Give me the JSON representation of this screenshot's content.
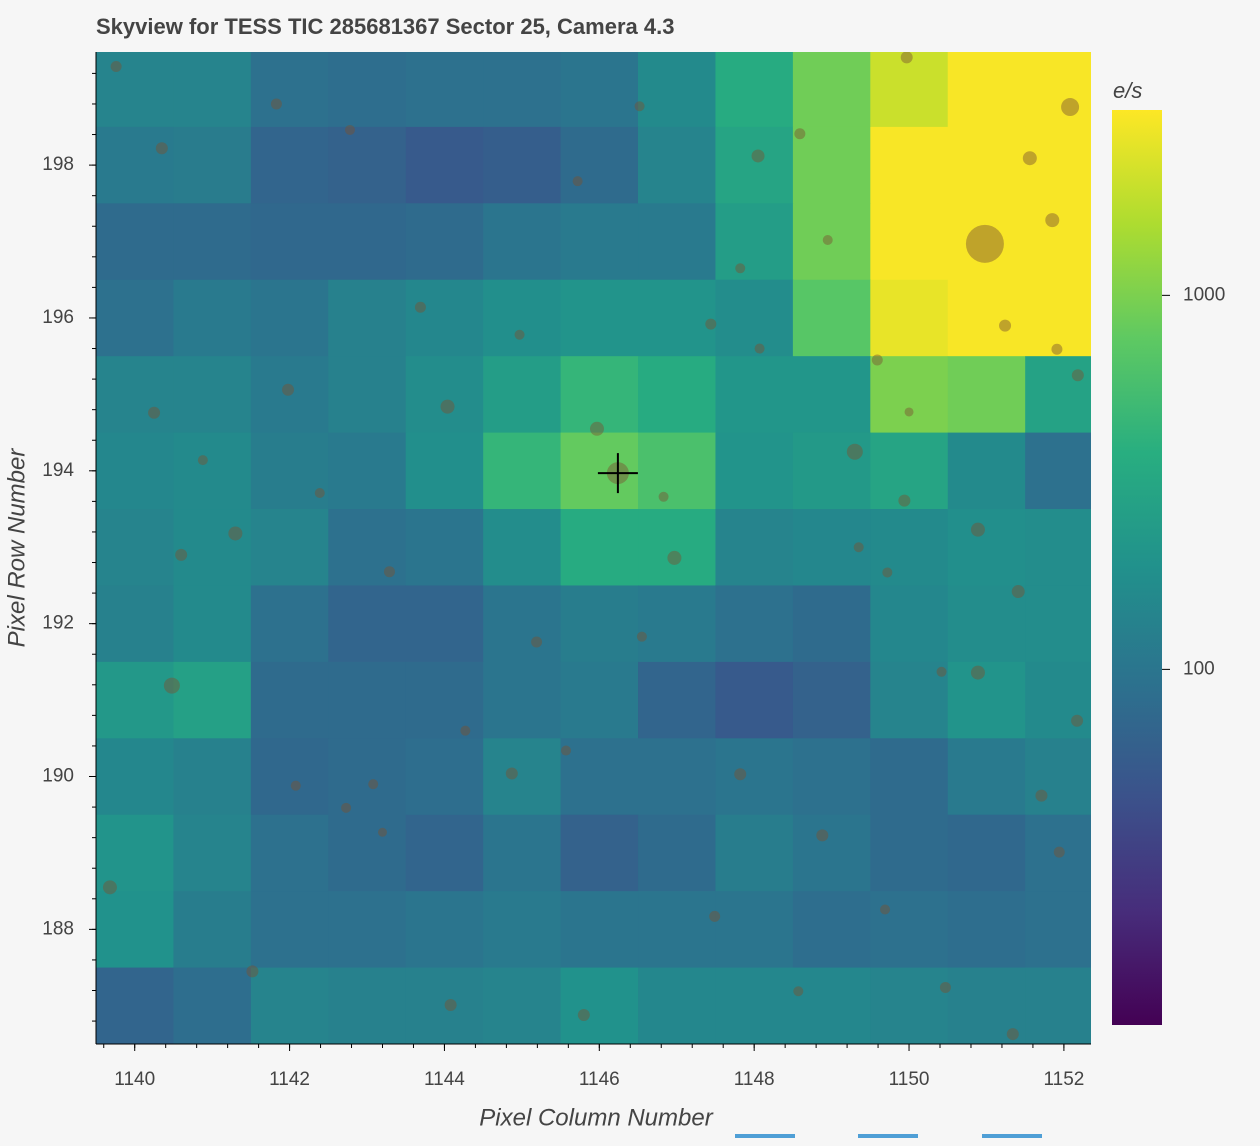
{
  "chart_data": {
    "type": "heatmap",
    "title": "Skyview for TESS TIC 285681367 Sector 25, Camera 4.3",
    "x_label": "Pixel Column Number",
    "y_label": "Pixel Row Number",
    "colorbar_label": "e/s",
    "x": [
      1140,
      1141,
      1142,
      1143,
      1144,
      1145,
      1146,
      1147,
      1148,
      1149,
      1150,
      1151,
      1152
    ],
    "y": [
      199,
      198,
      197,
      196,
      195,
      194,
      193,
      192,
      191,
      190,
      189,
      188,
      187
    ],
    "z": [
      [
        140,
        140,
        90,
        85,
        90,
        90,
        100,
        160,
        350,
        900,
        2000,
        3000,
        3000
      ],
      [
        110,
        115,
        70,
        65,
        55,
        60,
        80,
        140,
        300,
        900,
        3000,
        3000,
        3000
      ],
      [
        80,
        80,
        75,
        75,
        80,
        100,
        110,
        110,
        250,
        900,
        3000,
        3000,
        3000
      ],
      [
        90,
        110,
        100,
        130,
        150,
        180,
        200,
        200,
        170,
        700,
        2600,
        3000,
        3000
      ],
      [
        140,
        140,
        110,
        130,
        170,
        250,
        450,
        350,
        210,
        210,
        1000,
        900,
        280
      ],
      [
        150,
        160,
        120,
        110,
        180,
        450,
        800,
        600,
        200,
        230,
        300,
        160,
        90
      ],
      [
        140,
        160,
        140,
        90,
        100,
        170,
        350,
        350,
        140,
        150,
        160,
        180,
        170
      ],
      [
        130,
        160,
        90,
        70,
        70,
        100,
        120,
        110,
        90,
        80,
        150,
        170,
        170
      ],
      [
        220,
        270,
        80,
        80,
        80,
        100,
        110,
        70,
        55,
        65,
        140,
        200,
        160
      ],
      [
        150,
        130,
        75,
        80,
        85,
        140,
        90,
        90,
        100,
        90,
        80,
        110,
        130
      ],
      [
        200,
        140,
        90,
        80,
        70,
        100,
        65,
        80,
        120,
        100,
        80,
        75,
        90
      ],
      [
        190,
        120,
        90,
        90,
        100,
        110,
        100,
        100,
        100,
        85,
        90,
        85,
        90
      ],
      [
        70,
        85,
        140,
        130,
        130,
        140,
        190,
        150,
        150,
        150,
        140,
        130,
        130
      ]
    ],
    "colormap": [
      "#440154",
      "#472d7b",
      "#3b528b",
      "#2c728e",
      "#21918c",
      "#28ae80",
      "#5ec962",
      "#addc30",
      "#fde725"
    ],
    "clim": [
      11.2,
      3130
    ],
    "cticks": [
      100,
      1000
    ],
    "clog": true,
    "xlim": [
      1139.5,
      1152.35
    ],
    "ylim": [
      186.5,
      199.48
    ],
    "xticks": [
      1140,
      1142,
      1144,
      1146,
      1148,
      1150,
      1152
    ],
    "yticks": [
      188,
      190,
      192,
      194,
      196,
      198
    ],
    "star_color": "#7a5230",
    "stars": {
      "x": [
        1152.08,
        1150.98,
        1151.56,
        1151.85,
        1149.97,
        1151.24,
        1146.24,
        1145.97,
        1149.3,
        1149.94,
        1146.97,
        1146.83,
        1144.04,
        1143.69,
        1141.3,
        1140.48,
        1139.68,
        1140.6,
        1140.35,
        1139.76,
        1140.25,
        1140.88,
        1141.98,
        1150.89,
        1150.89,
        1151.41,
        1151.71,
        1152.18,
        1147.82,
        1148.88,
        1149.69,
        1147.49,
        1144.08,
        1141.52,
        1145.8,
        1147.44,
        1148.07,
        1148.05,
        1148.95,
        1145.72,
        1144.97,
        1145.19,
        1144.87,
        1144.27,
        1142.73,
        1143.08,
        1142.08,
        1143.2,
        1143.29,
        1142.39,
        1150.47,
        1151.34,
        1150.42,
        1151.94,
        1152.17,
        1149.72,
        1147.82,
        1151.91,
        1149.59,
        1150.0,
        1149.35,
        1145.57,
        1146.55,
        1148.57,
        1148.59,
        1146.52,
        1141.83,
        1142.78
      ],
      "y": [
        198.76,
        196.97,
        198.09,
        197.28,
        199.41,
        195.9,
        193.97,
        194.55,
        194.25,
        193.61,
        192.86,
        193.66,
        194.84,
        196.14,
        193.18,
        191.19,
        188.55,
        192.9,
        198.22,
        199.29,
        194.76,
        194.14,
        195.06,
        191.36,
        193.23,
        192.42,
        189.75,
        195.25,
        190.03,
        189.23,
        188.26,
        188.17,
        187.01,
        187.45,
        186.88,
        195.92,
        195.6,
        198.12,
        197.02,
        197.79,
        195.78,
        191.76,
        190.04,
        190.6,
        189.59,
        189.9,
        189.88,
        189.27,
        192.68,
        193.71,
        187.24,
        186.63,
        191.37,
        189.01,
        190.73,
        192.67,
        196.65,
        195.59,
        195.45,
        194.77,
        193.0,
        190.34,
        191.83,
        187.19,
        198.41,
        198.77,
        198.8,
        198.46
      ],
      "size": [
        18,
        38,
        14,
        14,
        12,
        12,
        22,
        14,
        16,
        12,
        14,
        10,
        14,
        11,
        14,
        16,
        14,
        12,
        12,
        11,
        12,
        10,
        12,
        14,
        14,
        13,
        12,
        12,
        12,
        12,
        10,
        11,
        12,
        12,
        12,
        11,
        10,
        13,
        10,
        10,
        10,
        11,
        12,
        10,
        10,
        10,
        10,
        9,
        11,
        10,
        11,
        12,
        10,
        11,
        12,
        10,
        10,
        11,
        11,
        9,
        10,
        10,
        10,
        10,
        11,
        10,
        11,
        10
      ]
    },
    "target_x": 1146.24,
    "target_y": 193.97
  }
}
